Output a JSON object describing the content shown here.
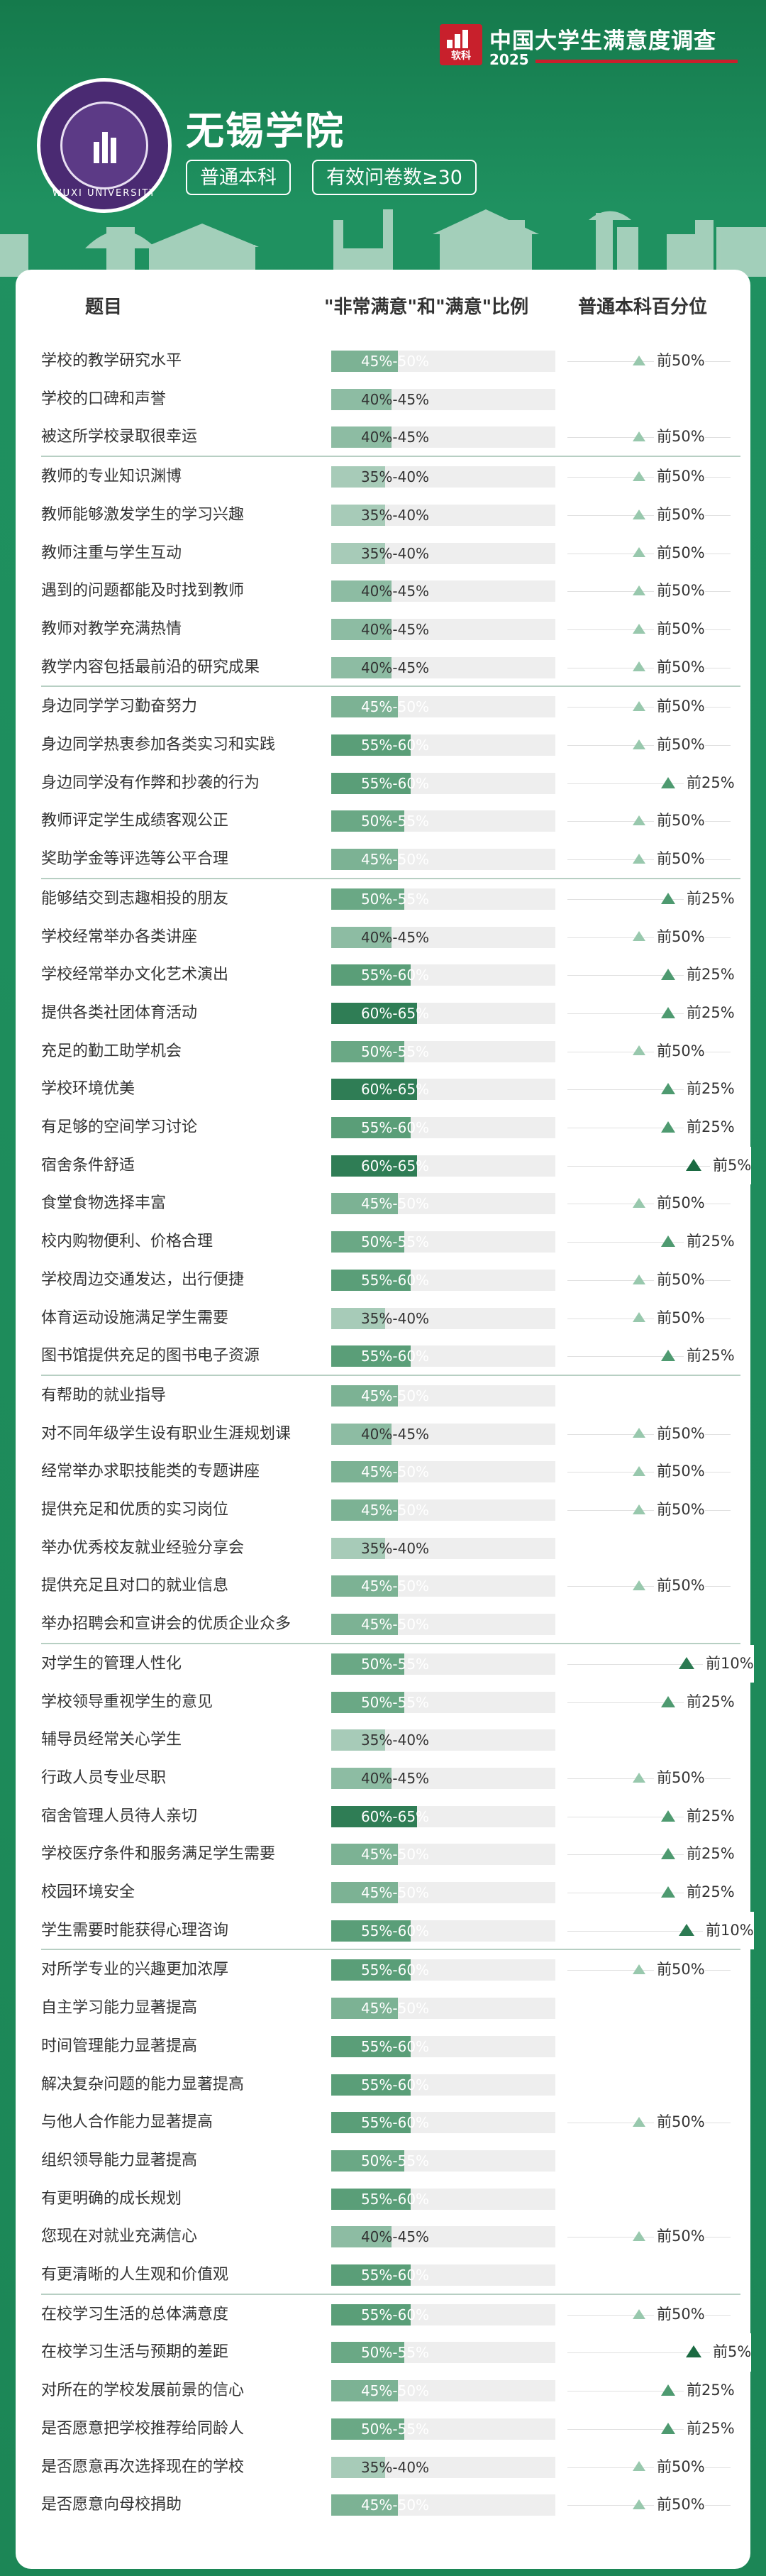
{
  "header": {
    "survey_title": "中国大学生满意度调查",
    "survey_year": "2025",
    "brand_mark": "软科",
    "university_name": "无锡学院",
    "seal_text": "WUXI UNIVERSITY",
    "level_chip": "普通本科",
    "sample_chip": "有效问卷数≥30"
  },
  "table": {
    "columns": [
      "题目",
      "\"非常满意\"和\"满意\"比例",
      "普通本科百分位"
    ],
    "groups": [
      [
        {
          "q": "学校的教学研究水平",
          "r": "45%-50%",
          "p": "前50%"
        },
        {
          "q": "学校的口碑和声誉",
          "r": "40%-45%",
          "p": ""
        },
        {
          "q": "被这所学校录取很幸运",
          "r": "40%-45%",
          "p": "前50%"
        }
      ],
      [
        {
          "q": "教师的专业知识渊博",
          "r": "35%-40%",
          "p": "前50%"
        },
        {
          "q": "教师能够激发学生的学习兴趣",
          "r": "35%-40%",
          "p": "前50%"
        },
        {
          "q": "教师注重与学生互动",
          "r": "35%-40%",
          "p": "前50%"
        },
        {
          "q": "遇到的问题都能及时找到教师",
          "r": "40%-45%",
          "p": "前50%"
        },
        {
          "q": "教师对教学充满热情",
          "r": "40%-45%",
          "p": "前50%"
        },
        {
          "q": "教学内容包括最前沿的研究成果",
          "r": "40%-45%",
          "p": "前50%"
        }
      ],
      [
        {
          "q": "身边同学学习勤奋努力",
          "r": "45%-50%",
          "p": "前50%"
        },
        {
          "q": "身边同学热衷参加各类实习和实践",
          "r": "55%-60%",
          "p": "前50%"
        },
        {
          "q": "身边同学没有作弊和抄袭的行为",
          "r": "55%-60%",
          "p": "前25%"
        },
        {
          "q": "教师评定学生成绩客观公正",
          "r": "50%-55%",
          "p": "前50%"
        },
        {
          "q": "奖助学金等评选等公平合理",
          "r": "45%-50%",
          "p": "前50%"
        }
      ],
      [
        {
          "q": "能够结交到志趣相投的朋友",
          "r": "50%-55%",
          "p": "前25%"
        },
        {
          "q": "学校经常举办各类讲座",
          "r": "40%-45%",
          "p": "前50%"
        },
        {
          "q": "学校经常举办文化艺术演出",
          "r": "55%-60%",
          "p": "前25%"
        },
        {
          "q": "提供各类社团体育活动",
          "r": "60%-65%",
          "p": "前25%"
        },
        {
          "q": "充足的勤工助学机会",
          "r": "50%-55%",
          "p": "前50%"
        },
        {
          "q": "学校环境优美",
          "r": "60%-65%",
          "p": "前25%"
        },
        {
          "q": "有足够的空间学习讨论",
          "r": "55%-60%",
          "p": "前25%"
        },
        {
          "q": "宿舍条件舒适",
          "r": "60%-65%",
          "p": "前5%"
        },
        {
          "q": "食堂食物选择丰富",
          "r": "45%-50%",
          "p": "前50%"
        },
        {
          "q": "校内购物便利、价格合理",
          "r": "50%-55%",
          "p": "前25%"
        },
        {
          "q": "学校周边交通发达，出行便捷",
          "r": "55%-60%",
          "p": "前50%"
        },
        {
          "q": "体育运动设施满足学生需要",
          "r": "35%-40%",
          "p": "前50%"
        },
        {
          "q": "图书馆提供充足的图书电子资源",
          "r": "55%-60%",
          "p": "前25%"
        }
      ],
      [
        {
          "q": "有帮助的就业指导",
          "r": "45%-50%",
          "p": ""
        },
        {
          "q": "对不同年级学生设有职业生涯规划课",
          "r": "40%-45%",
          "p": "前50%"
        },
        {
          "q": "经常举办求职技能类的专题讲座",
          "r": "45%-50%",
          "p": "前50%"
        },
        {
          "q": "提供充足和优质的实习岗位",
          "r": "45%-50%",
          "p": "前50%"
        },
        {
          "q": "举办优秀校友就业经验分享会",
          "r": "35%-40%",
          "p": ""
        },
        {
          "q": "提供充足且对口的就业信息",
          "r": "45%-50%",
          "p": "前50%"
        },
        {
          "q": "举办招聘会和宣讲会的优质企业众多",
          "r": "45%-50%",
          "p": ""
        }
      ],
      [
        {
          "q": "对学生的管理人性化",
          "r": "50%-55%",
          "p": "前10%"
        },
        {
          "q": "学校领导重视学生的意见",
          "r": "50%-55%",
          "p": "前25%"
        },
        {
          "q": "辅导员经常关心学生",
          "r": "35%-40%",
          "p": ""
        },
        {
          "q": "行政人员专业尽职",
          "r": "40%-45%",
          "p": "前50%"
        },
        {
          "q": "宿舍管理人员待人亲切",
          "r": "60%-65%",
          "p": "前25%"
        },
        {
          "q": "学校医疗条件和服务满足学生需要",
          "r": "45%-50%",
          "p": "前25%"
        },
        {
          "q": "校园环境安全",
          "r": "45%-50%",
          "p": "前25%"
        },
        {
          "q": "学生需要时能获得心理咨询",
          "r": "55%-60%",
          "p": "前10%"
        }
      ],
      [
        {
          "q": "对所学专业的兴趣更加浓厚",
          "r": "55%-60%",
          "p": "前50%"
        },
        {
          "q": "自主学习能力显著提高",
          "r": "45%-50%",
          "p": ""
        },
        {
          "q": "时间管理能力显著提高",
          "r": "55%-60%",
          "p": ""
        },
        {
          "q": "解决复杂问题的能力显著提高",
          "r": "55%-60%",
          "p": ""
        },
        {
          "q": "与他人合作能力显著提高",
          "r": "55%-60%",
          "p": "前50%"
        },
        {
          "q": "组织领导能力显著提高",
          "r": "50%-55%",
          "p": ""
        },
        {
          "q": "有更明确的成长规划",
          "r": "55%-60%",
          "p": ""
        },
        {
          "q": "您现在对就业充满信心",
          "r": "40%-45%",
          "p": "前50%"
        },
        {
          "q": "有更清晰的人生观和价值观",
          "r": "55%-60%",
          "p": ""
        }
      ],
      [
        {
          "q": "在校学习生活的总体满意度",
          "r": "55%-60%",
          "p": "前50%"
        },
        {
          "q": "在校学习生活与预期的差距",
          "r": "50%-55%",
          "p": "前5%"
        },
        {
          "q": "对所在的学校发展前景的信心",
          "r": "45%-50%",
          "p": "前25%"
        },
        {
          "q": "是否愿意把学校推荐给同龄人",
          "r": "50%-55%",
          "p": "前25%"
        },
        {
          "q": "是否愿意再次选择现在的学校",
          "r": "35%-40%",
          "p": "前50%"
        },
        {
          "q": "是否愿意向母校捐助",
          "r": "45%-50%",
          "p": "前50%"
        }
      ]
    ]
  },
  "colors": {
    "background": "#1e8a57",
    "bar_35": "#a7cbb8",
    "bar_40": "#8dbca3",
    "bar_45": "#7cb294",
    "bar_50": "#6aa885",
    "bar_55": "#5a9e78",
    "bar_60": "#2f7d55",
    "tri_50": "#98c8ad",
    "tri_25": "#4e9a70",
    "tri_10": "#2c7a52",
    "tri_5": "#1b6a42"
  }
}
